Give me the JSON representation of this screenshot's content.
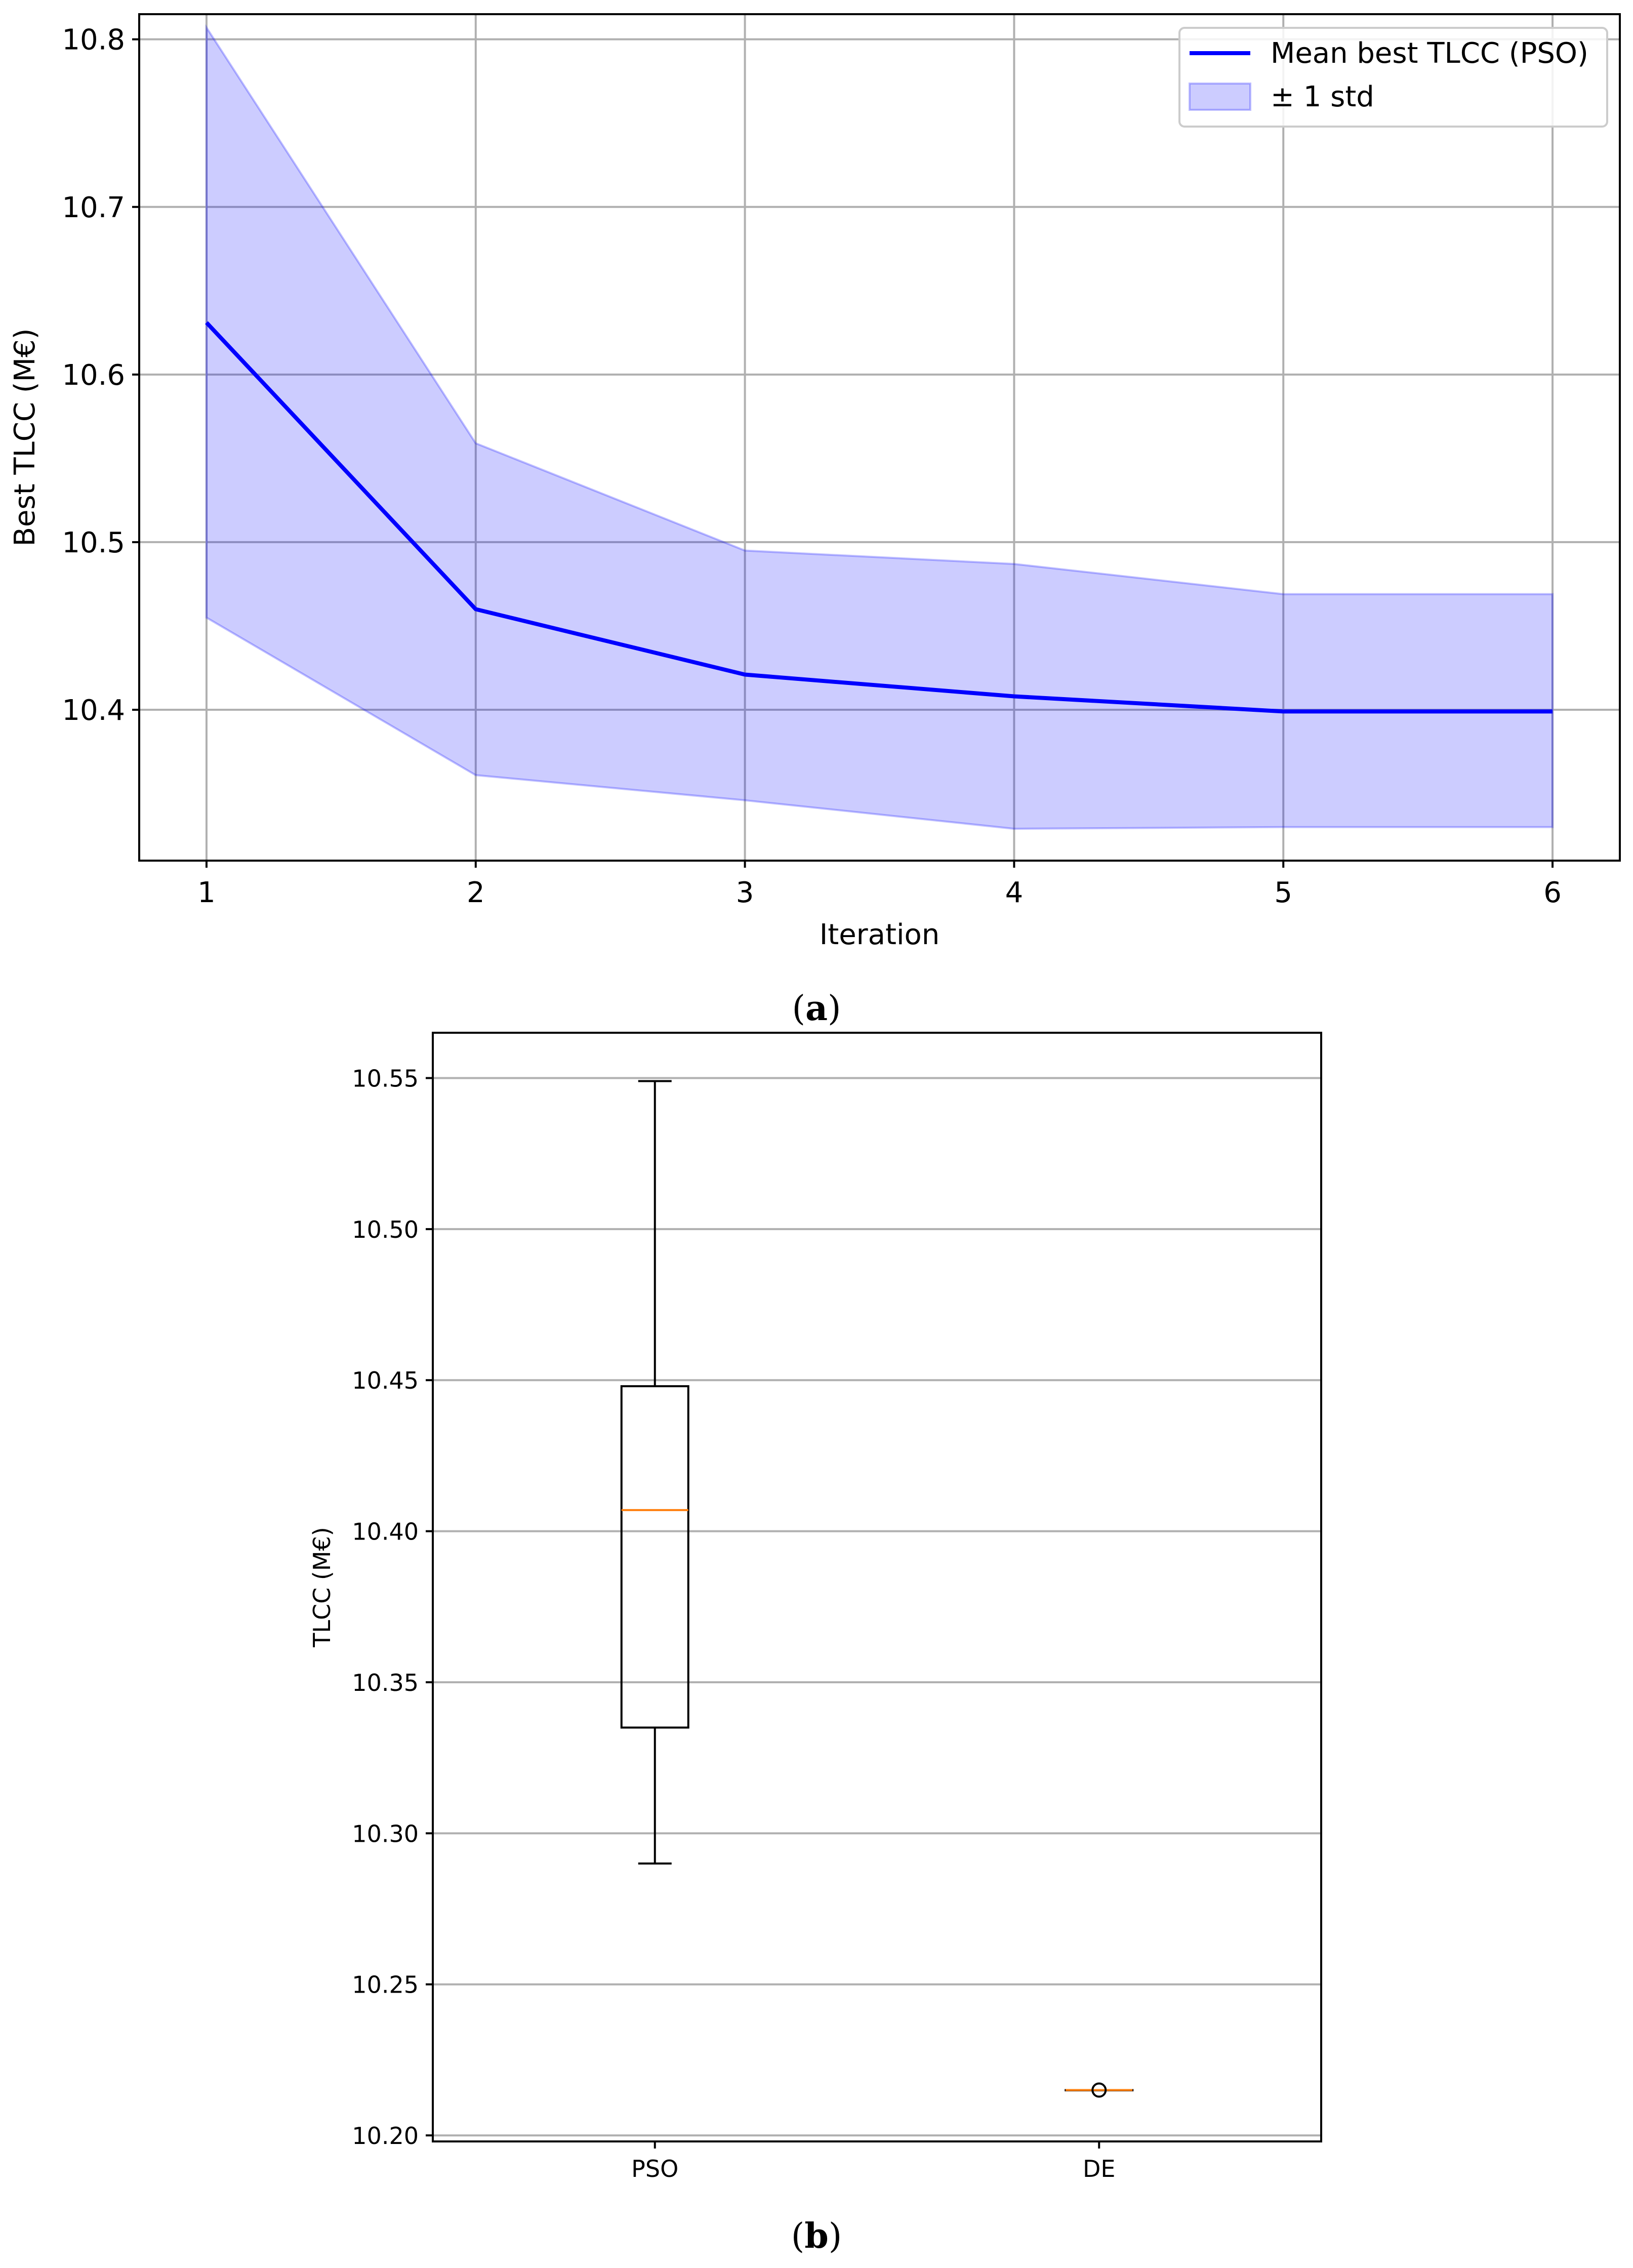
{
  "chart_data": [
    {
      "type": "line",
      "caption_letter": "a",
      "xlabel": "Iteration",
      "ylabel": "Best TLCC (M€)",
      "xlim": [
        0.75,
        6.25
      ],
      "ylim": [
        10.31,
        10.815
      ],
      "x": [
        1,
        2,
        3,
        4,
        5,
        6
      ],
      "x_ticks": [
        "1",
        "2",
        "3",
        "4",
        "5",
        "6"
      ],
      "y_ticks": [
        10.4,
        10.5,
        10.6,
        10.7,
        10.8
      ],
      "y_tick_labels": [
        "10.4",
        "10.5",
        "10.6",
        "10.7",
        "10.8"
      ],
      "grid": true,
      "legend_position": "top-right",
      "series": [
        {
          "name": "Mean best TLCC (PSO)",
          "values": [
            10.631,
            10.46,
            10.421,
            10.408,
            10.399,
            10.399
          ],
          "color": "#0000ff"
        }
      ],
      "band": {
        "name": "± 1 std",
        "upper": [
          10.807,
          10.559,
          10.495,
          10.487,
          10.469,
          10.469
        ],
        "lower": [
          10.455,
          10.361,
          10.346,
          10.329,
          10.33,
          10.33
        ],
        "color": "#0000ff"
      }
    },
    {
      "type": "box",
      "caption_letter": "b",
      "xlabel": "",
      "ylabel": "TLCC (M€)",
      "ylim": [
        10.198,
        10.565
      ],
      "y_ticks": [
        10.2,
        10.25,
        10.3,
        10.35,
        10.4,
        10.45,
        10.5,
        10.55
      ],
      "y_tick_labels": [
        "10.20",
        "10.25",
        "10.30",
        "10.35",
        "10.40",
        "10.45",
        "10.50",
        "10.55"
      ],
      "grid": "horizontal",
      "categories": [
        "PSO",
        "DE"
      ],
      "boxes": [
        {
          "name": "PSO",
          "whisker_low": 10.29,
          "q1": 10.335,
          "median": 10.407,
          "q3": 10.448,
          "whisker_high": 10.549,
          "outliers": []
        },
        {
          "name": "DE",
          "whisker_low": 10.215,
          "q1": 10.215,
          "median": 10.215,
          "q3": 10.215,
          "whisker_high": 10.215,
          "outliers": [
            10.215
          ]
        }
      ],
      "median_color": "#ff7f0e"
    }
  ]
}
